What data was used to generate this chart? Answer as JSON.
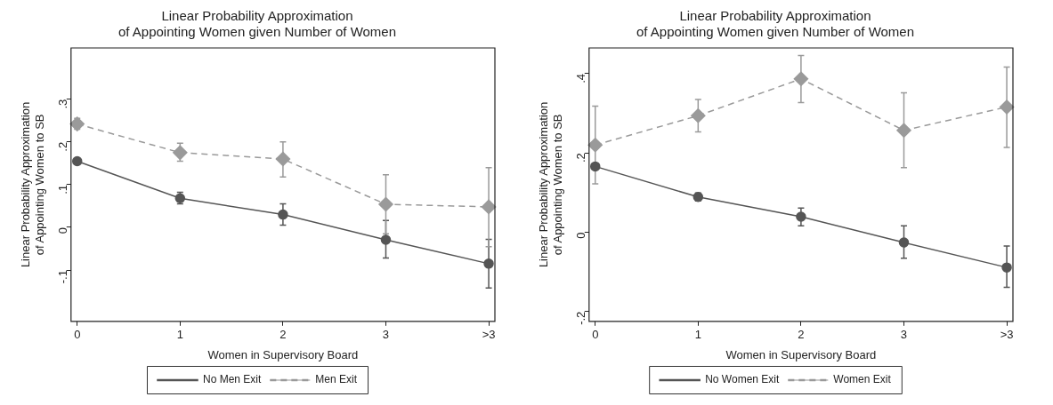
{
  "chart_data": [
    {
      "type": "line",
      "title": "Linear Probability Approximation\nof Appointing Women given Number of Women",
      "xlabel": "Women in Supervisory Board",
      "ylabel": "Linear Probability Approximation\nof Appointing Women to SB",
      "categories": [
        "0",
        "1",
        "2",
        "3",
        ">3"
      ],
      "series": [
        {
          "name": "No Men Exit",
          "color": "#555555",
          "marker": "circle",
          "line_style": "solid",
          "values": [
            0.155,
            0.068,
            0.03,
            -0.029,
            -0.085
          ],
          "errors": [
            null,
            [
              0.055,
              0.082
            ],
            [
              0.005,
              0.055
            ],
            [
              -0.072,
              0.016
            ],
            [
              -0.142,
              -0.028
            ]
          ]
        },
        {
          "name": "Men Exit",
          "color": "#9a9a9a",
          "marker": "diamond",
          "line_style": "dashed",
          "values": [
            0.242,
            0.175,
            0.16,
            0.054,
            0.048
          ],
          "errors": [
            [
              0.23,
              0.255
            ],
            [
              0.155,
              0.197
            ],
            [
              0.118,
              0.2
            ],
            [
              -0.015,
              0.123
            ],
            [
              -0.045,
              0.14
            ]
          ]
        }
      ],
      "ylim": [
        -0.22,
        0.42
      ],
      "yticks": [
        {
          "value": -0.1,
          "label": "-.1"
        },
        0,
        {
          "value": 0.1,
          "label": ".1"
        },
        {
          "value": 0.2,
          "label": ".2"
        },
        {
          "value": 0.3,
          "label": ".3"
        }
      ],
      "grid": false,
      "legend": "bottom"
    },
    {
      "type": "line",
      "title": "Linear Probability Approximation\nof Appointing Women given Number of Women",
      "xlabel": "Women in Supervisory Board",
      "ylabel": "Linear Probability Approximation\nof Appointing Women to SB",
      "categories": [
        "0",
        "1",
        "2",
        "3",
        ">3"
      ],
      "series": [
        {
          "name": "No Women Exit",
          "color": "#555555",
          "marker": "circle",
          "line_style": "solid",
          "values": [
            0.166,
            0.089,
            0.039,
            -0.026,
            -0.089
          ],
          "errors": [
            null,
            [
              0.079,
              0.099
            ],
            [
              0.016,
              0.061
            ],
            [
              -0.066,
              0.016
            ],
            [
              -0.139,
              -0.035
            ]
          ]
        },
        {
          "name": "Women Exit",
          "color": "#9a9a9a",
          "marker": "diamond",
          "line_style": "dashed",
          "values": [
            0.22,
            0.294,
            0.387,
            0.257,
            0.316
          ],
          "errors": [
            [
              0.122,
              0.318
            ],
            [
              0.253,
              0.335
            ],
            [
              0.327,
              0.446
            ],
            [
              0.163,
              0.352
            ],
            [
              0.214,
              0.417
            ]
          ]
        }
      ],
      "ylim": [
        -0.225,
        0.465
      ],
      "yticks": [
        {
          "value": -0.2,
          "label": "-.2"
        },
        0,
        {
          "value": 0.2,
          "label": ".2"
        },
        {
          "value": 0.4,
          "label": ".4"
        }
      ],
      "grid": false,
      "legend": "bottom"
    }
  ]
}
